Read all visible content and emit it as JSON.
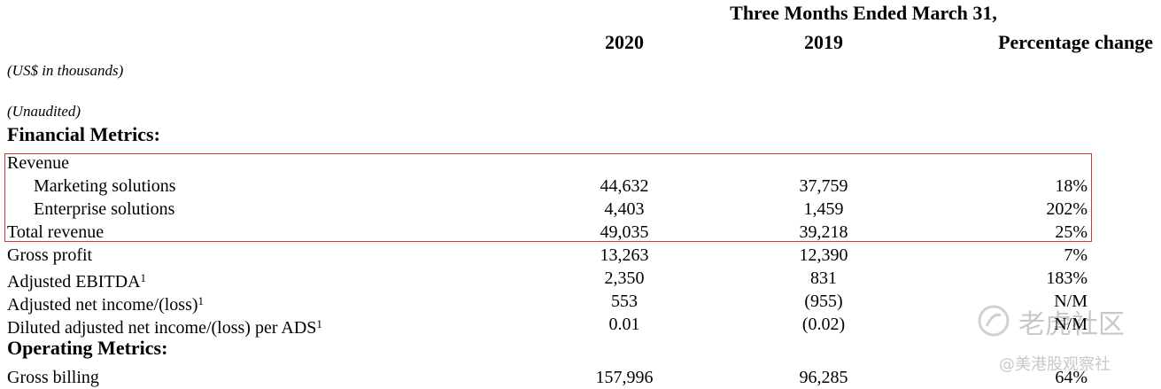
{
  "header": {
    "period": "Three Months Ended March 31,",
    "columns": [
      "2020",
      "2019",
      "Percentage change"
    ]
  },
  "notes": [
    "(US$ in thousands)",
    "(Unaudited)"
  ],
  "financial_metrics": {
    "title": "Financial Metrics:",
    "rows": [
      {
        "label": "Revenue"
      },
      {
        "label": "Marketing solutions",
        "values": [
          "44,632",
          "37,759",
          "18%"
        ]
      },
      {
        "label": "Enterprise solutions",
        "values": [
          "4,403",
          "1,459",
          "202%"
        ]
      },
      {
        "label": "Total revenue",
        "values": [
          "49,035",
          "39,218",
          "25%"
        ]
      },
      {
        "label": "Gross profit",
        "values": [
          "13,263",
          "12,390",
          "7%"
        ]
      },
      {
        "label": "Adjusted EBITDA",
        "footnote": "1",
        "values": [
          "2,350",
          "831",
          "183%"
        ]
      },
      {
        "label": "Adjusted net income/(loss)",
        "footnote": "1",
        "values": [
          "553",
          "(955)",
          "N/M"
        ]
      },
      {
        "label": "Diluted adjusted net income/(loss) per ADS",
        "footnote": "1",
        "values": [
          "0.01",
          "(0.02)",
          "N/M"
        ]
      }
    ]
  },
  "operating_metrics": {
    "title": "Operating Metrics:",
    "rows": [
      {
        "label": "Gross billing",
        "values": [
          "157,996",
          "96,285",
          "64%"
        ]
      }
    ]
  },
  "watermark": [
    "老虎社区",
    "@美港股观察社"
  ]
}
